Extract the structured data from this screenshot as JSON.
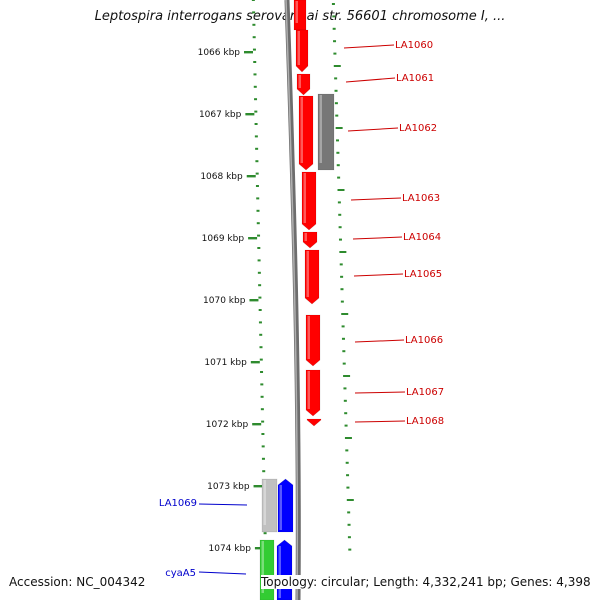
{
  "title": "Leptospira interrogans serovar Lai str. 56601 chromosome I, ...",
  "colors": {
    "tick": "#2e8b2e",
    "ruler": "#888888",
    "red_gene": "#ff0000",
    "gray_gene": "#777777",
    "light_gray_gene": "#c0c0c0",
    "blue_gene": "#0000ff",
    "green_gene": "#33cc33",
    "red_label": "#cc0000",
    "blue_label": "#0000cc"
  },
  "scale": {
    "labels": [
      "1066 kbp",
      "1067 kbp",
      "1068 kbp",
      "1069 kbp",
      "1070 kbp",
      "1071 kbp",
      "1072 kbp",
      "1073 kbp",
      "1074 kbp"
    ]
  },
  "genes": [
    {
      "name": "LA1060",
      "strand": "minus",
      "color": "red"
    },
    {
      "name": "LA1061",
      "strand": "minus",
      "color": "red"
    },
    {
      "name": "LA1062",
      "strand": "minus",
      "color": "red"
    },
    {
      "name": "LA1063",
      "strand": "minus",
      "color": "red"
    },
    {
      "name": "LA1064",
      "strand": "minus",
      "color": "red"
    },
    {
      "name": "LA1065",
      "strand": "minus",
      "color": "red"
    },
    {
      "name": "LA1066",
      "strand": "minus",
      "color": "red"
    },
    {
      "name": "LA1067",
      "strand": "minus",
      "color": "red"
    },
    {
      "name": "LA1068",
      "strand": "minus",
      "color": "red"
    },
    {
      "name": "LA1069",
      "strand": "plus",
      "color": "blue"
    },
    {
      "name": "cyaA5",
      "strand": "plus",
      "color": "blue"
    }
  ],
  "footer": {
    "accession": "Accession: NC_004342",
    "summary": "Topology: circular; Length: 4,332,241 bp; Genes: 4,398"
  }
}
